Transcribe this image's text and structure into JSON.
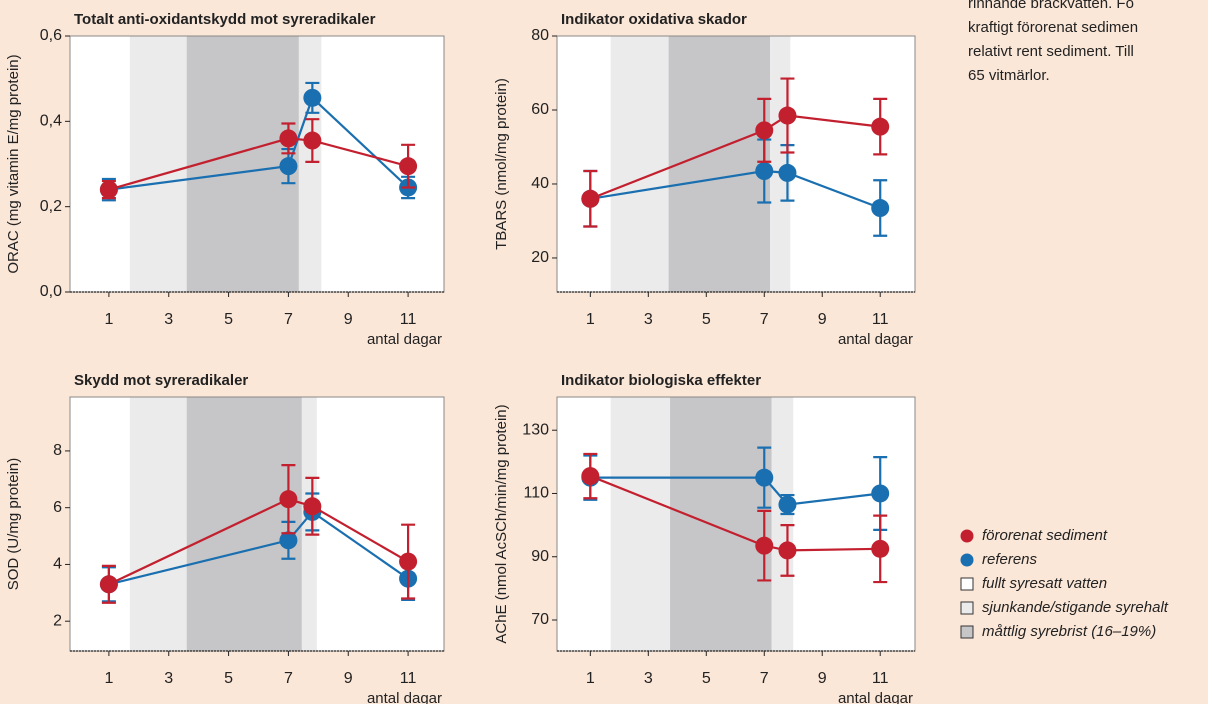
{
  "note_lines": [
    "rinnande bräckvatten. Fö",
    "kraftigt förorenat sedimen",
    "relativt rent sediment. Till",
    "65 vitmärlor."
  ],
  "chart_data": [
    {
      "type": "line",
      "title": "Totalt anti-oxidantskydd mot syreradikaler",
      "xlabel": "antal dagar",
      "ylabel": "ORAC (mg vitamin E/mg protein)",
      "x": [
        1,
        7,
        7.8,
        11
      ],
      "xlim": [
        -0.3,
        12.2
      ],
      "xticks": [
        1,
        3,
        5,
        7,
        9,
        11
      ],
      "ylim": [
        0,
        0.6
      ],
      "yticks": [
        {
          "value": 0,
          "label": "0,0"
        },
        {
          "value": 0.2,
          "label": "0,2"
        },
        {
          "value": 0.4,
          "label": "0,4"
        },
        {
          "value": 0.6,
          "label": "0,6"
        }
      ],
      "bands": [
        {
          "name": "sjunkande/stigande syrehalt",
          "from": 1.7,
          "to": 3.6,
          "color": "#ebebeb"
        },
        {
          "name": "måttlig syrebrist (16–19%)",
          "from": 3.6,
          "to": 7.35,
          "color": "#c6c6c8"
        },
        {
          "from": 7.35,
          "to": 8.1,
          "color": "#ebebeb"
        }
      ],
      "background": {
        "name": "fullt syresatt vatten",
        "color": "#ffffff"
      },
      "series": [
        {
          "name": "förorenat sediment",
          "color": "#c3202f",
          "values": [
            0.24,
            0.36,
            0.355,
            0.295
          ],
          "errors": [
            0.02,
            0.035,
            0.05,
            0.05
          ]
        },
        {
          "name": "referens",
          "color": "#1a6fb0",
          "values": [
            0.24,
            0.295,
            0.455,
            0.245
          ],
          "errors": [
            0.025,
            0.04,
            0.035,
            0.025
          ]
        }
      ]
    },
    {
      "type": "line",
      "title": "Indikator oxidativa skador",
      "xlabel": "antal dagar",
      "ylabel": "TBARS (nmol/mg protein)",
      "x": [
        1,
        7,
        7.8,
        11
      ],
      "xlim": [
        -0.15,
        12.2
      ],
      "xticks": [
        1,
        3,
        5,
        7,
        9,
        11
      ],
      "ylim": [
        10.8,
        80
      ],
      "yticks": [
        20,
        40,
        60,
        80
      ],
      "bands": [
        {
          "from": 1.7,
          "to": 3.7,
          "color": "#ebebeb"
        },
        {
          "from": 3.7,
          "to": 7.2,
          "color": "#c6c6c8"
        },
        {
          "from": 7.2,
          "to": 7.9,
          "color": "#ebebeb"
        }
      ],
      "series": [
        {
          "color": "#c3202f",
          "values": [
            36,
            54.5,
            58.5,
            55.5
          ],
          "errors": [
            7.5,
            8.5,
            10,
            7.5
          ]
        },
        {
          "color": "#1a6fb0",
          "values": [
            36,
            43.5,
            43,
            33.5
          ],
          "errors": [
            7.5,
            8.5,
            7.5,
            7.5
          ]
        }
      ]
    },
    {
      "type": "line",
      "title": "Skydd mot syreradikaler",
      "xlabel": "antal dagar",
      "ylabel": "SOD (U/mg protein)",
      "x": [
        1,
        7,
        7.8,
        11
      ],
      "xlim": [
        -0.3,
        12.2
      ],
      "xticks": [
        1,
        3,
        5,
        7,
        9,
        11
      ],
      "ylim": [
        0.95,
        9.9
      ],
      "yticks": [
        2,
        4,
        6,
        8
      ],
      "bands": [
        {
          "from": 1.7,
          "to": 3.6,
          "color": "#ebebeb"
        },
        {
          "from": 3.6,
          "to": 7.45,
          "color": "#c6c6c8"
        },
        {
          "from": 7.45,
          "to": 7.95,
          "color": "#ebebeb"
        }
      ],
      "series": [
        {
          "color": "#c3202f",
          "values": [
            3.3,
            6.3,
            6.05,
            4.1
          ],
          "errors": [
            0.65,
            1.2,
            1.0,
            1.3
          ]
        },
        {
          "color": "#1a6fb0",
          "values": [
            3.3,
            4.85,
            5.85,
            3.5
          ],
          "errors": [
            0.6,
            0.65,
            0.65,
            0.75
          ]
        }
      ]
    },
    {
      "type": "line",
      "title": "Indikator biologiska effekter",
      "xlabel": "antal dagar",
      "ylabel": "AChE (nmol AcSCh/min/mg protein)",
      "x": [
        1,
        7,
        7.8,
        11
      ],
      "xlim": [
        -0.15,
        12.2
      ],
      "xticks": [
        1,
        3,
        5,
        7,
        9,
        11
      ],
      "ylim": [
        60.2,
        140.5
      ],
      "yticks": [
        70,
        90,
        110,
        130
      ],
      "bands": [
        {
          "from": 1.7,
          "to": 3.75,
          "color": "#ebebeb"
        },
        {
          "from": 3.75,
          "to": 7.25,
          "color": "#c6c6c8"
        },
        {
          "from": 7.25,
          "to": 8.0,
          "color": "#ebebeb"
        }
      ],
      "series": [
        {
          "color": "#c3202f",
          "values": [
            115.5,
            93.5,
            92,
            92.5
          ],
          "errors": [
            7,
            11,
            8,
            10.5
          ]
        },
        {
          "color": "#1a6fb0",
          "values": [
            115,
            115,
            106.5,
            110
          ],
          "errors": [
            7,
            9.5,
            3,
            11.5
          ]
        }
      ]
    }
  ]
}
